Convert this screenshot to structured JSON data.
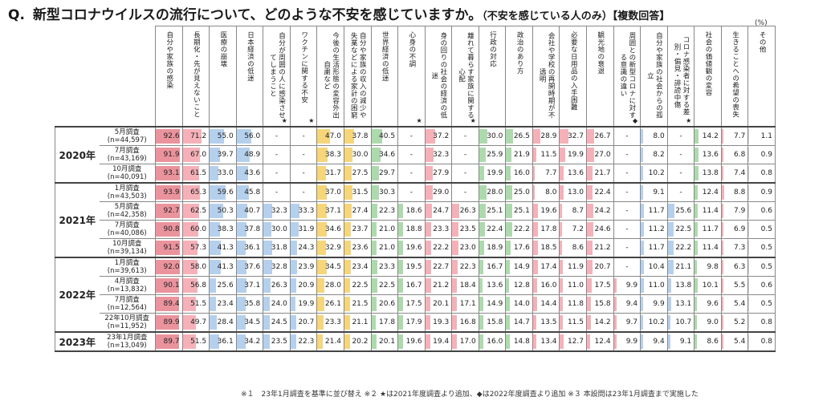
{
  "title": {
    "q": "Q.",
    "main": "新型コロナウイルスの流行について、どのような不安を感じていますか。",
    "sub": "（不安を感じている人のみ）【複数回答】"
  },
  "unit": "(%)",
  "columns": [
    {
      "label": "自分や家族の感染",
      "star": "",
      "color": "#e8808c"
    },
    {
      "label": "長期化・先が見えないこと",
      "star": "",
      "color": "#f4a3ac"
    },
    {
      "label": "医療の崩壊",
      "star": "",
      "color": "#a8c8ea"
    },
    {
      "label": "日本経済の低迷",
      "star": "",
      "color": "#a8c8ea"
    },
    {
      "label": "自分が周囲の人に感染させてしまうこと",
      "star": "★",
      "color": "#a8c8ea"
    },
    {
      "label": "ワクチンに関する不安",
      "star": "★",
      "color": "#a8c8ea"
    },
    {
      "label": "今後の生活形態の変容外出自粛など",
      "star": "",
      "color": "#f5cf62"
    },
    {
      "label": "自分や家族の収入の減少や失業などによる家計の困窮",
      "star": "",
      "color": "#f5cf62"
    },
    {
      "label": "世界経済の低迷",
      "star": "",
      "color": "#9fd39f"
    },
    {
      "label": "心身の不調",
      "star": "★",
      "color": "#9fd39f"
    },
    {
      "label": "身の回りの社会の経済の低迷",
      "star": "",
      "color": "#f4a3ac"
    },
    {
      "label": "離れて暮らす家族に関する心配",
      "star": "★",
      "color": "#f4a3ac"
    },
    {
      "label": "行政の対応",
      "star": "",
      "color": "#9fd39f"
    },
    {
      "label": "政治のあり方",
      "star": "",
      "color": "#9fd39f"
    },
    {
      "label": "会社や学校の再開時期が不透明",
      "star": "",
      "color": "#f4a3ac"
    },
    {
      "label": "必要な日用品の入手困難",
      "star": "",
      "color": "#f4a3ac"
    },
    {
      "label": "観光地の衰退",
      "star": "",
      "color": "#f4a3ac"
    },
    {
      "label": "周囲との新型コロナに対する意識の違い",
      "star": "◆",
      "color": "#f4a3ac"
    },
    {
      "label": "自分や家族の社会からの孤立",
      "star": "",
      "color": "#a8c8ea"
    },
    {
      "label": "コロナ感染者に対する差別・偏見・誹謗中傷",
      "star": "★",
      "color": "#a8c8ea"
    },
    {
      "label": "社会の価値観の変容",
      "star": "",
      "color": "#9fd39f"
    },
    {
      "label": "生きることへの希望の喪失",
      "star": "",
      "color": "#f4a3ac"
    },
    {
      "label": "その他",
      "star": "",
      "color": "#cccccc"
    }
  ],
  "groups": [
    {
      "year": "2020年",
      "rows": [
        {
          "survey": "5月調査",
          "n": "(n=44,597)",
          "values": [
            "92.6",
            "71.2",
            "55.0",
            "56.0",
            "-",
            "-",
            "47.0",
            "37.8",
            "40.5",
            "-",
            "37.2",
            "-",
            "30.0",
            "26.5",
            "28.9",
            "32.7",
            "26.7",
            "-",
            "8.0",
            "-",
            "14.2",
            "7.7",
            "1.1"
          ]
        },
        {
          "survey": "7月調査",
          "n": "(n=43,169)",
          "values": [
            "91.9",
            "67.0",
            "39.7",
            "48.9",
            "-",
            "-",
            "38.3",
            "30.0",
            "34.6",
            "-",
            "32.3",
            "-",
            "25.9",
            "21.9",
            "11.5",
            "19.9",
            "27.0",
            "-",
            "8.2",
            "-",
            "13.6",
            "6.8",
            "0.9"
          ]
        },
        {
          "survey": "10月調査",
          "n": "(n=40,091)",
          "values": [
            "93.1",
            "61.5",
            "33.0",
            "43.6",
            "-",
            "-",
            "31.7",
            "27.5",
            "29.7",
            "-",
            "27.9",
            "-",
            "19.9",
            "16.0",
            "7.7",
            "13.6",
            "21.7",
            "-",
            "10.2",
            "-",
            "13.8",
            "7.4",
            "0.8"
          ]
        }
      ]
    },
    {
      "year": "2021年",
      "rows": [
        {
          "survey": "1月調査",
          "n": "(n=43,503)",
          "values": [
            "93.9",
            "65.3",
            "59.6",
            "45.8",
            "-",
            "-",
            "37.0",
            "31.5",
            "30.3",
            "-",
            "29.0",
            "-",
            "28.0",
            "25.0",
            "8.0",
            "13.0",
            "22.4",
            "-",
            "9.1",
            "-",
            "12.4",
            "8.8",
            "0.9"
          ]
        },
        {
          "survey": "5月調査",
          "n": "(n=42,358)",
          "values": [
            "92.7",
            "62.5",
            "50.3",
            "40.7",
            "32.3",
            "33.3",
            "37.1",
            "27.4",
            "22.3",
            "18.6",
            "24.7",
            "26.3",
            "25.1",
            "25.1",
            "19.6",
            "8.7",
            "24.2",
            "-",
            "11.7",
            "25.6",
            "11.4",
            "7.9",
            "0.6"
          ]
        },
        {
          "survey": "7月調査",
          "n": "(n=40,086)",
          "values": [
            "90.8",
            "60.0",
            "38.3",
            "37.8",
            "30.0",
            "31.9",
            "34.6",
            "23.7",
            "21.0",
            "18.8",
            "23.3",
            "23.5",
            "22.4",
            "22.2",
            "17.8",
            "7.2",
            "24.6",
            "-",
            "11.2",
            "22.5",
            "11.7",
            "6.9",
            "0.5"
          ]
        },
        {
          "survey": "10月調査",
          "n": "(n=39,134)",
          "values": [
            "91.5",
            "57.3",
            "41.3",
            "36.1",
            "31.8",
            "24.3",
            "32.9",
            "23.6",
            "21.0",
            "19.6",
            "22.2",
            "23.0",
            "18.9",
            "17.6",
            "18.5",
            "8.6",
            "21.2",
            "-",
            "11.7",
            "22.2",
            "11.4",
            "7.3",
            "0.5"
          ]
        }
      ]
    },
    {
      "year": "2022年",
      "rows": [
        {
          "survey": "1月調査",
          "n": "(n=39,613)",
          "values": [
            "92.0",
            "58.0",
            "41.3",
            "37.6",
            "32.8",
            "23.9",
            "34.5",
            "23.4",
            "23.3",
            "19.5",
            "22.7",
            "22.3",
            "16.7",
            "14.9",
            "17.4",
            "11.9",
            "20.7",
            "-",
            "10.4",
            "21.1",
            "9.8",
            "6.3",
            "0.5"
          ]
        },
        {
          "survey": "4月調査",
          "n": "(n=13,832)",
          "values": [
            "90.1",
            "56.8",
            "25.6",
            "37.1",
            "26.3",
            "20.9",
            "28.0",
            "22.5",
            "22.5",
            "16.7",
            "21.2",
            "18.4",
            "13.6",
            "12.8",
            "16.0",
            "11.0",
            "17.5",
            "9.9",
            "11.0",
            "13.8",
            "10.1",
            "5.5",
            "0.6"
          ]
        },
        {
          "survey": "7月調査",
          "n": "(n=12,564)",
          "values": [
            "89.4",
            "51.5",
            "23.4",
            "35.8",
            "24.0",
            "19.9",
            "26.1",
            "21.5",
            "20.6",
            "17.5",
            "20.1",
            "17.1",
            "14.9",
            "14.0",
            "14.4",
            "11.8",
            "15.8",
            "9.4",
            "9.9",
            "13.1",
            "9.6",
            "5.4",
            "0.5"
          ]
        },
        {
          "survey": "22年10月調査",
          "n": "(n=11,952)",
          "values": [
            "89.9",
            "49.7",
            "28.4",
            "34.5",
            "24.5",
            "20.7",
            "23.3",
            "21.1",
            "17.8",
            "17.9",
            "19.3",
            "16.8",
            "15.8",
            "14.7",
            "13.5",
            "11.5",
            "14.2",
            "9.7",
            "10.2",
            "10.7",
            "9.0",
            "5.2",
            "0.8"
          ]
        }
      ]
    },
    {
      "year": "2023年",
      "rows": [
        {
          "survey": "23年1月調査",
          "n": "(n=13,049)",
          "values": [
            "89.7",
            "51.5",
            "36.1",
            "34.2",
            "23.5",
            "22.3",
            "21.4",
            "20.2",
            "20.1",
            "19.6",
            "19.4",
            "17.0",
            "16.0",
            "14.8",
            "13.4",
            "12.7",
            "12.4",
            "9.9",
            "9.4",
            "9.1",
            "8.6",
            "5.4",
            "0.8"
          ]
        }
      ]
    }
  ],
  "footnote": "※１　23年1月調査を基準に並び替え ※２ ★は2021年度調査より追加、◆は2022年度調査より追加 ※３ 本設問は23年1月調査まで実施した"
}
